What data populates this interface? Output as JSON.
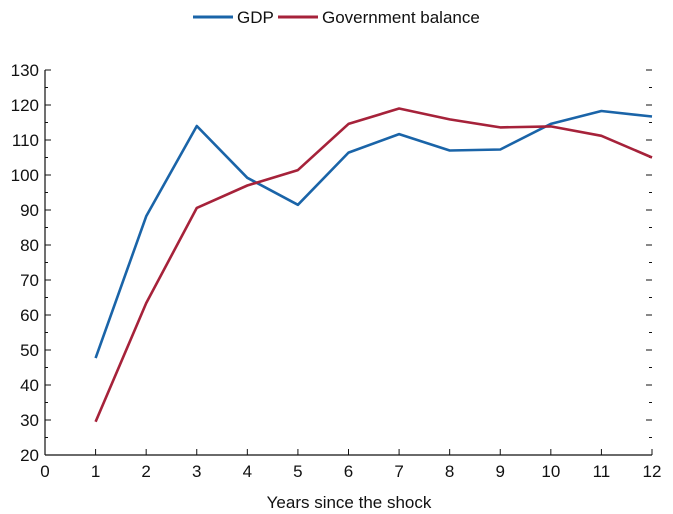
{
  "chart_data": {
    "type": "line",
    "xlabel": "Years since the shock",
    "ylabel": "",
    "xlim": [
      0,
      12
    ],
    "ylim": [
      20,
      130
    ],
    "x_ticks": [
      0,
      1,
      2,
      3,
      4,
      5,
      6,
      7,
      8,
      9,
      10,
      11,
      12
    ],
    "y_ticks": [
      20,
      30,
      40,
      50,
      60,
      70,
      80,
      90,
      100,
      110,
      120,
      130
    ],
    "y_minor_step": 5,
    "grid": false,
    "legend_position": "top-center",
    "x": [
      1,
      2,
      3,
      4,
      5,
      6,
      7,
      8,
      9,
      10,
      11,
      12
    ],
    "series": [
      {
        "name": "GDP",
        "color": "#1a64a8",
        "values": [
          47.7,
          88.2,
          114.0,
          99.2,
          91.5,
          106.4,
          111.7,
          107.0,
          107.3,
          114.6,
          118.3,
          116.7
        ]
      },
      {
        "name": "Government balance",
        "color": "#a6223a",
        "values": [
          29.5,
          63.4,
          90.6,
          97.0,
          101.4,
          114.6,
          119.0,
          115.9,
          113.6,
          113.9,
          111.2,
          105.0
        ]
      }
    ]
  }
}
